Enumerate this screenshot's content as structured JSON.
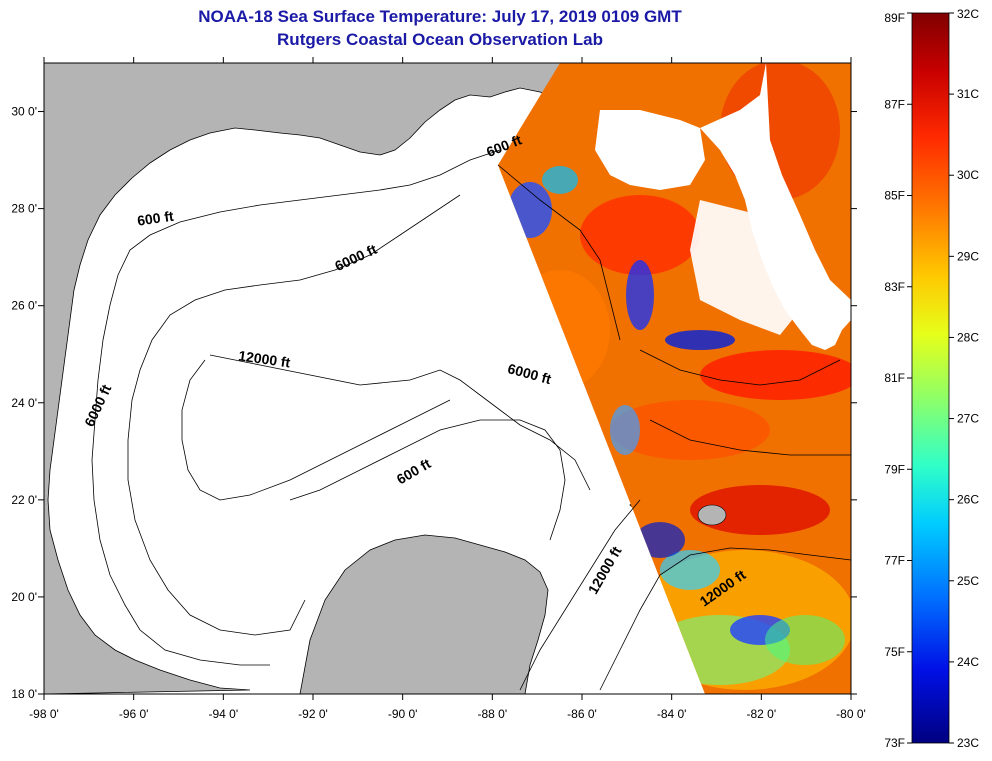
{
  "title": {
    "line1": "NOAA-18 Sea Surface Temperature:  July 17, 2019 0109 GMT",
    "line2": "Rutgers Coastal Ocean Observation Lab"
  },
  "map": {
    "lon_range": [
      -98,
      -80
    ],
    "lat_range": [
      18,
      31
    ],
    "lon_ticks": [
      {
        "lon": -98,
        "label": "-98 0'"
      },
      {
        "lon": -96,
        "label": "-96 0'"
      },
      {
        "lon": -94,
        "label": "-94 0'"
      },
      {
        "lon": -92,
        "label": "-92 0'"
      },
      {
        "lon": -90,
        "label": "-90 0'"
      },
      {
        "lon": -88,
        "label": "-88 0'"
      },
      {
        "lon": -86,
        "label": "-86 0'"
      },
      {
        "lon": -84,
        "label": "-84 0'"
      },
      {
        "lon": -82,
        "label": "-82 0'"
      },
      {
        "lon": -80,
        "label": "-80 0'"
      }
    ],
    "lat_ticks": [
      {
        "lat": 18,
        "label": "18 0'"
      },
      {
        "lat": 20,
        "label": "20 0'"
      },
      {
        "lat": 22,
        "label": "22 0'"
      },
      {
        "lat": 24,
        "label": "24 0'"
      },
      {
        "lat": 26,
        "label": "26 0'"
      },
      {
        "lat": 28,
        "label": "28 0'"
      },
      {
        "lat": 30,
        "label": "30 0'"
      }
    ],
    "contour_labels": [
      {
        "text": "600 ft",
        "lon": -87.7,
        "lat": 29.2,
        "rotate": -22
      },
      {
        "text": "600 ft",
        "lon": -95.5,
        "lat": 27.7,
        "rotate": -8
      },
      {
        "text": "6000 ft",
        "lon": -91.0,
        "lat": 26.9,
        "rotate": -25
      },
      {
        "text": "12000 ft",
        "lon": -93.1,
        "lat": 24.8,
        "rotate": 8
      },
      {
        "text": "6000 ft",
        "lon": -87.2,
        "lat": 24.5,
        "rotate": 15
      },
      {
        "text": "6000 ft",
        "lon": -96.7,
        "lat": 23.9,
        "rotate": -65
      },
      {
        "text": "600 ft",
        "lon": -89.7,
        "lat": 22.5,
        "rotate": -30
      },
      {
        "text": "12000 ft",
        "lon": -85.4,
        "lat": 20.5,
        "rotate": -60
      },
      {
        "text": "12000 ft",
        "lon": -82.8,
        "lat": 20.1,
        "rotate": -35
      }
    ],
    "land_color": "#b4b4b4",
    "ocean_color": "#ffffff"
  },
  "colorbar": {
    "fahrenheit_labels": [
      "89F",
      "87F",
      "85F",
      "83F",
      "81F",
      "79F",
      "77F",
      "75F",
      "73F"
    ],
    "celsius_labels": [
      "32C",
      "31C",
      "30C",
      "29C",
      "28C",
      "27C",
      "26C",
      "25C",
      "24C",
      "23C"
    ],
    "range_c": [
      23,
      32
    ],
    "colors_top_to_bottom": [
      "#800000",
      "#d40000",
      "#ff3a00",
      "#ff8a00",
      "#ffd000",
      "#d6ff1e",
      "#7dff7a",
      "#2affd2",
      "#00b8ff",
      "#0060ff",
      "#0000dd",
      "#000080"
    ]
  }
}
